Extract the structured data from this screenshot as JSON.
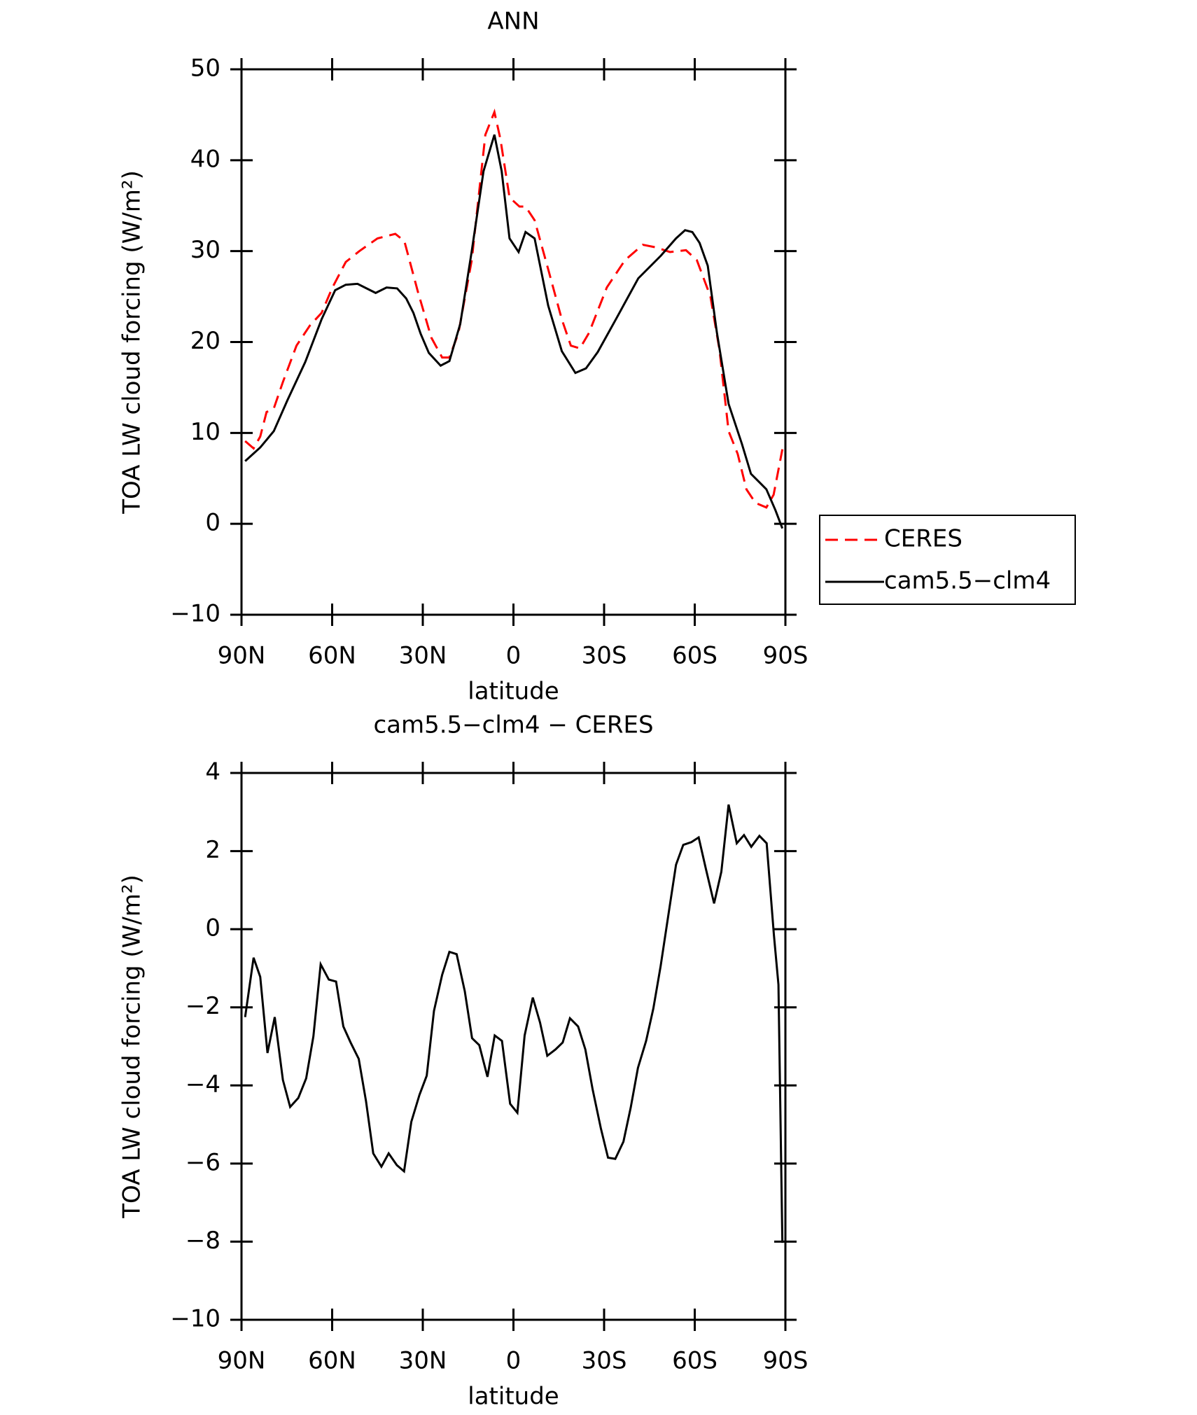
{
  "chart_data": [
    {
      "type": "line",
      "title": "ANN",
      "xlabel": "latitude",
      "ylabel": "TOA LW cloud forcing (W/m²)",
      "xlim": [
        90,
        -90
      ],
      "xticks": [
        {
          "value": 90,
          "label": "90N"
        },
        {
          "value": 60,
          "label": "60N"
        },
        {
          "value": 30,
          "label": "30N"
        },
        0,
        {
          "value": -30,
          "label": "30S"
        },
        {
          "value": -60,
          "label": "60S"
        },
        {
          "value": -90,
          "label": "90S"
        }
      ],
      "ylim": [
        -10,
        50
      ],
      "yticks": [
        {
          "value": -10,
          "label": "−10"
        },
        0,
        10,
        20,
        30,
        40,
        50
      ],
      "legend": "right",
      "series": [
        {
          "name": "CERES",
          "color": "#ff0000",
          "style": "dashed",
          "x": [
            88.8,
            86,
            83.8,
            81.7,
            79.3,
            76.3,
            71.8,
            67.4,
            63.5,
            59.9,
            55.5,
            51,
            45,
            39.1,
            36.1,
            31.6,
            27.2,
            23.6,
            21.2,
            18.2,
            13.8,
            9.3,
            6.3,
            4.3,
            1.3,
            -2,
            -4,
            -7,
            -11.5,
            -16,
            -19,
            -22,
            -25,
            -30.9,
            -36.9,
            -42.8,
            -47.3,
            -51.8,
            -57.1,
            -60.7,
            -65.2,
            -68.2,
            -71.2,
            -74.2,
            -77.1,
            -80.1,
            -83.7,
            -86.1,
            -89
          ],
          "values": [
            9.1,
            8.3,
            9.6,
            12.3,
            12.7,
            15.6,
            19.6,
            21.8,
            23.2,
            26,
            28.8,
            30,
            31.4,
            31.9,
            31.1,
            25.5,
            20.5,
            18.3,
            18.3,
            21,
            29,
            42.8,
            45.3,
            42.3,
            35.9,
            34.9,
            34.9,
            33.4,
            28,
            22.5,
            19.6,
            19.3,
            21,
            26,
            29,
            30.7,
            30.4,
            29.9,
            30.1,
            29,
            25,
            19.1,
            10.2,
            7.7,
            3.8,
            2.3,
            1.8,
            3.2,
            8.2
          ]
        },
        {
          "name": "cam5.5−clm4",
          "color": "#000000",
          "style": "solid",
          "x": [
            88.8,
            83.8,
            79.3,
            74.8,
            68.9,
            63.5,
            59,
            55.5,
            51.6,
            45.6,
            42,
            38.5,
            35.5,
            33.1,
            30.7,
            28,
            24.1,
            21.2,
            17.6,
            13.8,
            9.9,
            6.3,
            3.9,
            1.3,
            -1.7,
            -4,
            -7,
            -11.5,
            -16,
            -20.5,
            -24,
            -27.9,
            -33.9,
            -41.3,
            -48.8,
            -53.8,
            -56.8,
            -59.2,
            -61.6,
            -64.3,
            -67.3,
            -71.2,
            -75.6,
            -78.6,
            -81.6,
            -83.7,
            -86.7,
            -89
          ],
          "values": [
            6.9,
            8.4,
            10.2,
            13.6,
            17.8,
            22.5,
            25.7,
            26.3,
            26.4,
            25.4,
            26,
            25.9,
            24.8,
            23.2,
            20.9,
            18.8,
            17.4,
            17.9,
            22,
            30,
            38.8,
            42.8,
            38.8,
            31.4,
            29.9,
            32.1,
            31.4,
            24,
            19,
            16.6,
            17.1,
            18.9,
            22.5,
            27,
            29.5,
            31.4,
            32.3,
            32.1,
            30.9,
            28.4,
            21.1,
            13.2,
            8.8,
            5.5,
            4.5,
            3.8,
            1.5,
            -0.5
          ]
        }
      ]
    },
    {
      "type": "line",
      "title": "cam5.5−clm4 − CERES",
      "xlabel": "latitude",
      "ylabel": "TOA LW cloud forcing (W/m²)",
      "xlim": [
        90,
        -90
      ],
      "xticks": [
        {
          "value": 90,
          "label": "90N"
        },
        {
          "value": 60,
          "label": "60N"
        },
        {
          "value": 30,
          "label": "30N"
        },
        0,
        {
          "value": -30,
          "label": "30S"
        },
        {
          "value": -60,
          "label": "60S"
        },
        {
          "value": -90,
          "label": "90S"
        }
      ],
      "ylim": [
        -10,
        4
      ],
      "yticks": [
        {
          "value": -10,
          "label": "−10"
        },
        {
          "value": -8,
          "label": "−8"
        },
        {
          "value": -6,
          "label": "−6"
        },
        {
          "value": -4,
          "label": "−4"
        },
        {
          "value": -2,
          "label": "−2"
        },
        0,
        2,
        4
      ],
      "series": [
        {
          "color": "#000000",
          "style": "solid",
          "x": [
            88.8,
            86,
            83.8,
            81.4,
            79,
            76.3,
            73.9,
            71.2,
            68.6,
            66.2,
            63.8,
            61.1,
            58.7,
            56.3,
            53.9,
            51.2,
            48.8,
            46.4,
            43.7,
            41.3,
            38.6,
            36.2,
            33.8,
            31.1,
            28.7,
            26.3,
            23.6,
            21.2,
            18.8,
            16.1,
            13.7,
            11.3,
            8.6,
            6.2,
            3.8,
            1.1,
            -1.3,
            -3.7,
            -6.4,
            -8.8,
            -11.2,
            -13.9,
            -16.3,
            -18.7,
            -21.4,
            -23.8,
            -26.2,
            -28.9,
            -31.3,
            -33.7,
            -36.4,
            -38.8,
            -41.2,
            -43.9,
            -46.3,
            -48.7,
            -51.4,
            -53.8,
            -56.2,
            -58.9,
            -61.3,
            -63.7,
            -66.4,
            -68.8,
            -71.2,
            -73.9,
            -76.3,
            -78.7,
            -81.4,
            -83.8,
            -86.2,
            -87.7,
            -89
          ],
          "values": [
            -2.25,
            -0.73,
            -1.22,
            -3.17,
            -2.25,
            -3.86,
            -4.55,
            -4.32,
            -3.82,
            -2.74,
            -0.9,
            -1.29,
            -1.34,
            -2.49,
            -2.9,
            -3.32,
            -4.4,
            -5.74,
            -6.08,
            -5.74,
            -6.04,
            -6.2,
            -4.93,
            -4.24,
            -3.75,
            -2.09,
            -1.17,
            -0.58,
            -0.64,
            -1.59,
            -2.79,
            -2.97,
            -3.78,
            -2.72,
            -2.86,
            -4.47,
            -4.7,
            -2.72,
            -1.75,
            -2.39,
            -3.24,
            -3.08,
            -2.9,
            -2.28,
            -2.49,
            -3.08,
            -4.1,
            -5.09,
            -5.85,
            -5.88,
            -5.44,
            -4.57,
            -3.55,
            -2.86,
            -2.03,
            -0.95,
            0.43,
            1.65,
            2.16,
            2.23,
            2.35,
            1.54,
            0.66,
            1.47,
            3.19,
            2.2,
            2.41,
            2.11,
            2.39,
            2.2,
            -0.15,
            -1.42,
            -8.03
          ]
        }
      ]
    }
  ]
}
